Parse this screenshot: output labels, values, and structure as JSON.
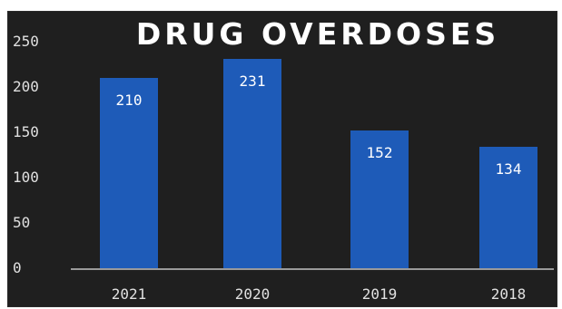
{
  "chart_data": {
    "type": "bar",
    "title": "DRUG OVERDOSES",
    "categories": [
      "2021",
      "2020",
      "2019",
      "2018"
    ],
    "values": [
      210,
      231,
      152,
      134
    ],
    "data_labels": [
      "210",
      "231",
      "152",
      "134"
    ],
    "ylim": [
      0,
      250
    ],
    "yticks": [
      0,
      50,
      100,
      150,
      200,
      250
    ],
    "grid": false,
    "legend": "none",
    "bar_color": "#1e5bb8",
    "background": "#1f1f1f",
    "text_color": "#e0e0e0"
  }
}
